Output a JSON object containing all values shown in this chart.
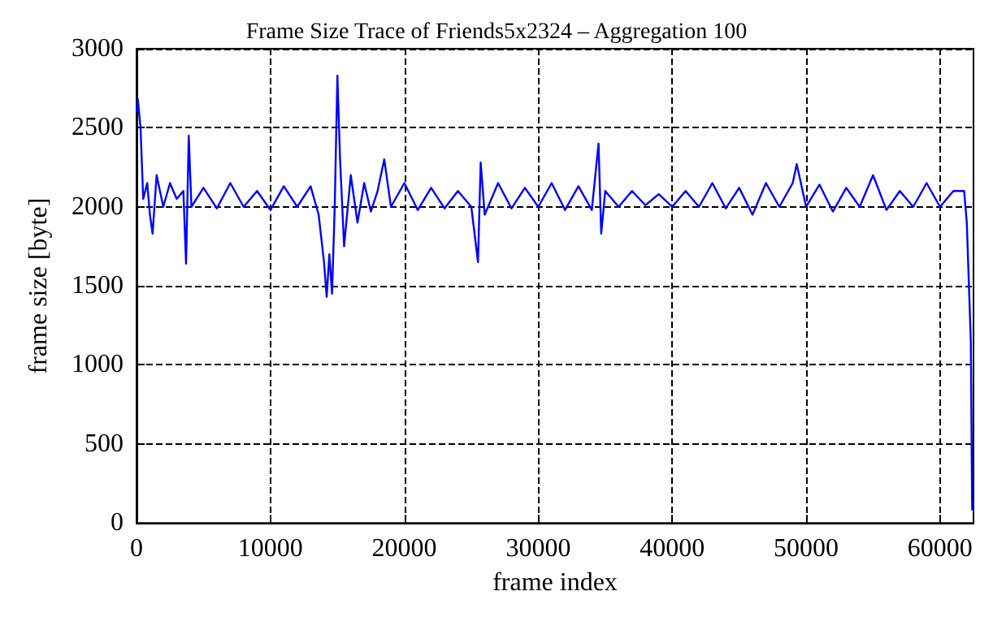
{
  "chart_data": {
    "type": "line",
    "title": "Frame Size Trace of Friends5x2324 – Aggregation 100",
    "xlabel": "frame index",
    "ylabel": "frame size [byte]",
    "x": [
      0,
      100,
      300,
      500,
      800,
      1000,
      1200,
      1500,
      2000,
      2500,
      3000,
      3500,
      3700,
      3900,
      4100,
      5000,
      6000,
      7000,
      8000,
      9000,
      10000,
      11000,
      12000,
      13000,
      13600,
      14000,
      14200,
      14400,
      14600,
      14800,
      15000,
      15200,
      15500,
      16000,
      16500,
      17000,
      17500,
      18000,
      18500,
      19000,
      20000,
      21000,
      22000,
      23000,
      24000,
      25000,
      25500,
      25700,
      26000,
      27000,
      28000,
      29000,
      30000,
      31000,
      32000,
      33000,
      34000,
      34500,
      34700,
      35000,
      36000,
      37000,
      38000,
      39000,
      40000,
      41000,
      42000,
      43000,
      44000,
      45000,
      46000,
      47000,
      48000,
      49000,
      49300,
      50000,
      51000,
      52000,
      53000,
      54000,
      55000,
      56000,
      57000,
      58000,
      59000,
      60000,
      61000,
      61800,
      62000,
      62300,
      62400
    ],
    "series": [
      {
        "color": "#0000ff",
        "values": [
          2600,
          2680,
          2500,
          2050,
          2150,
          1950,
          1830,
          2200,
          2000,
          2150,
          2050,
          2100,
          1640,
          2450,
          2000,
          2120,
          1990,
          2150,
          2000,
          2100,
          1980,
          2130,
          2000,
          2130,
          1950,
          1650,
          1430,
          1700,
          1450,
          2000,
          2830,
          2300,
          1750,
          2200,
          1900,
          2150,
          1970,
          2100,
          2300,
          2000,
          2150,
          1980,
          2120,
          1990,
          2100,
          2000,
          1650,
          2280,
          1950,
          2150,
          1990,
          2120,
          2000,
          2150,
          1980,
          2130,
          1980,
          2400,
          1830,
          2100,
          2000,
          2100,
          2010,
          2080,
          2000,
          2100,
          2000,
          2150,
          1990,
          2120,
          1950,
          2150,
          2000,
          2150,
          2270,
          2000,
          2140,
          1970,
          2120,
          2000,
          2200,
          1980,
          2100,
          2000,
          2150,
          2000,
          2100,
          2100,
          1900,
          1150,
          80
        ]
      }
    ],
    "xlim": [
      0,
      62500
    ],
    "ylim": [
      0,
      3000
    ],
    "xticks": [
      0,
      10000,
      20000,
      30000,
      40000,
      50000,
      60000
    ],
    "yticks": [
      0,
      500,
      1000,
      1500,
      2000,
      2500,
      3000
    ],
    "grid": true,
    "marker": "none",
    "line_style": "solid"
  }
}
